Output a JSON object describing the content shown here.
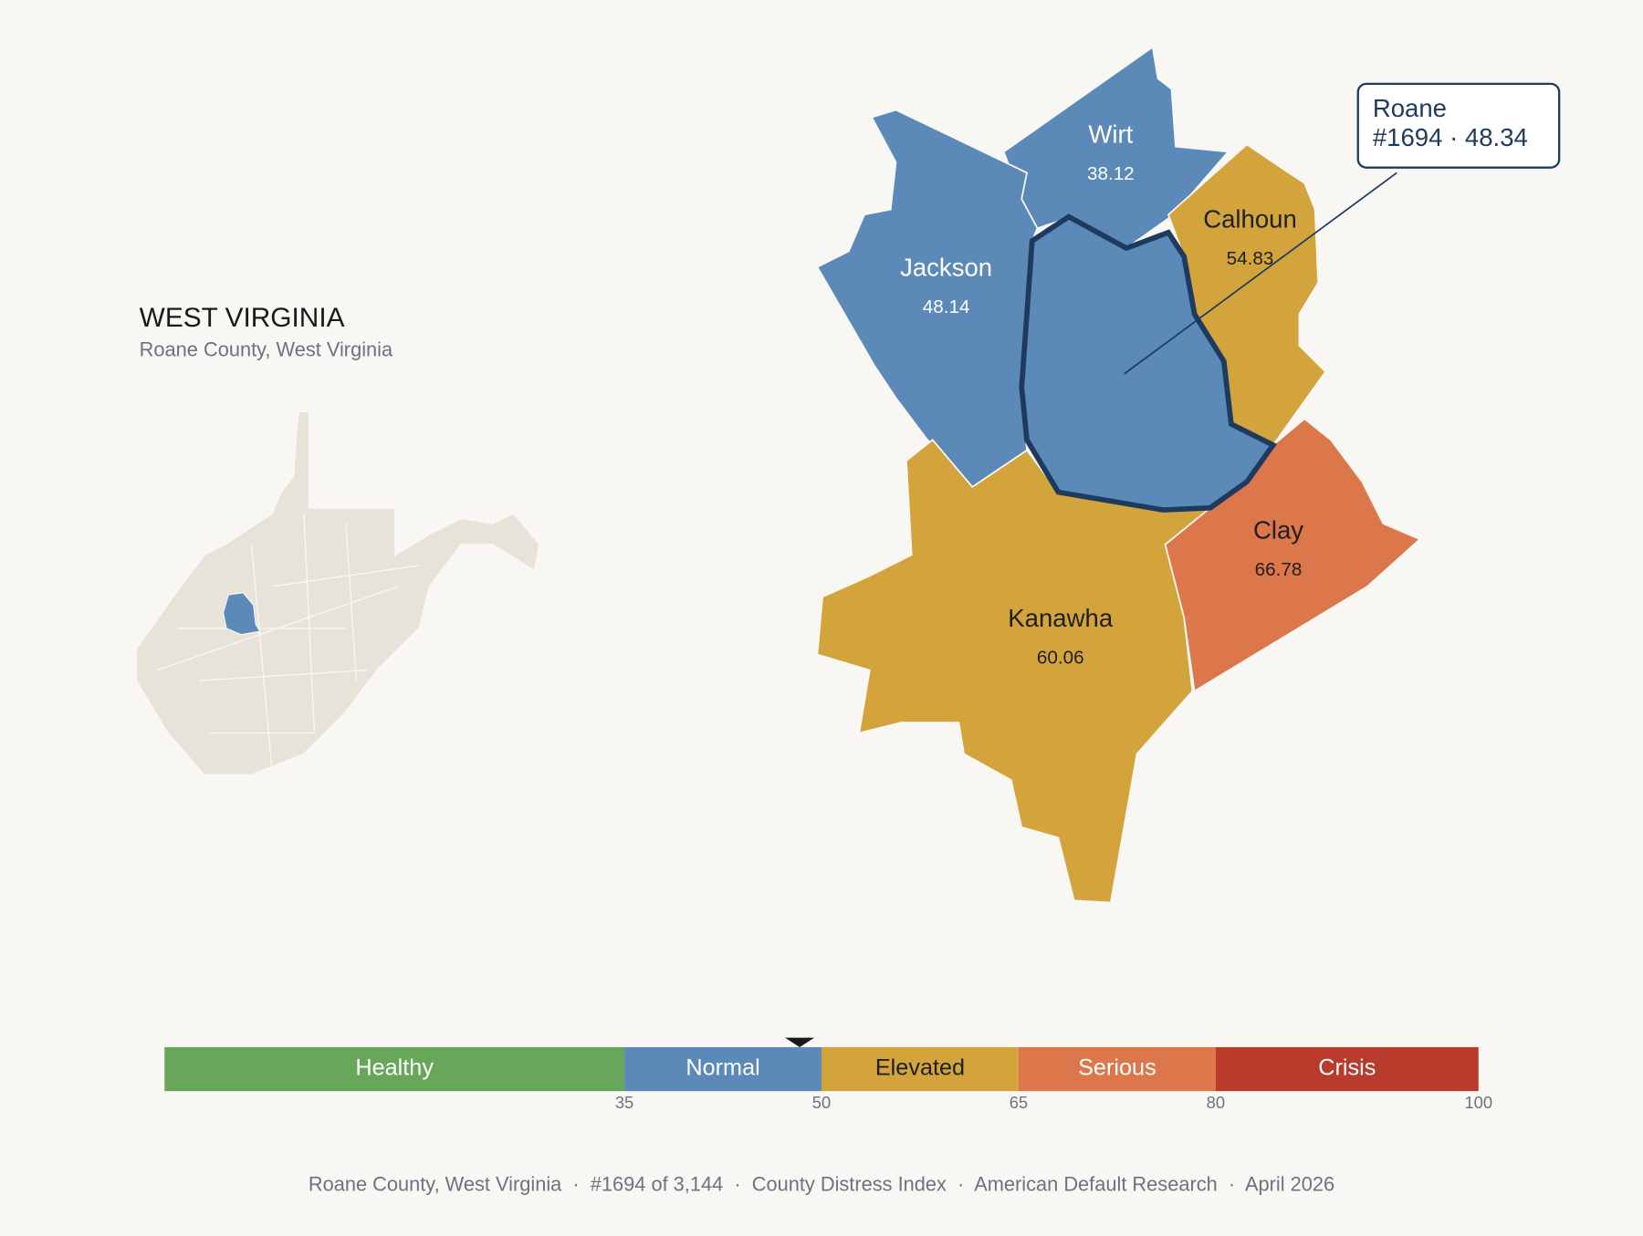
{
  "header": {
    "title": "WEST VIRGINIA",
    "subtitle": "Roane County, West Virginia"
  },
  "counties": [
    {
      "name": "Wirt",
      "value": 38.12
    },
    {
      "name": "Jackson",
      "value": 48.14
    },
    {
      "name": "Calhoun",
      "value": 54.83
    },
    {
      "name": "Clay",
      "value": 66.78
    },
    {
      "name": "Kanawha",
      "value": 60.06
    },
    {
      "name": "Roane",
      "value": 48.34,
      "label": "#1694 · 48.34"
    }
  ],
  "scale": {
    "min": 0,
    "bands": [
      {
        "name": "Healthy",
        "color": "#68a75a",
        "to": 35
      },
      {
        "name": "Normal",
        "color": "#5b89b8",
        "to": 50
      },
      {
        "name": "Elevated",
        "color": "#d3a43b",
        "to": 65
      },
      {
        "name": "Serious",
        "color": "#dc774b",
        "to": 80
      },
      {
        "name": "Crisis",
        "color": "#b83b2b",
        "to": 100
      }
    ]
  },
  "footer": "Roane County, West Virginia  ·  #1694 of 3,144  ·  County Distress Index  ·  American Default Research  ·  April 2026"
}
